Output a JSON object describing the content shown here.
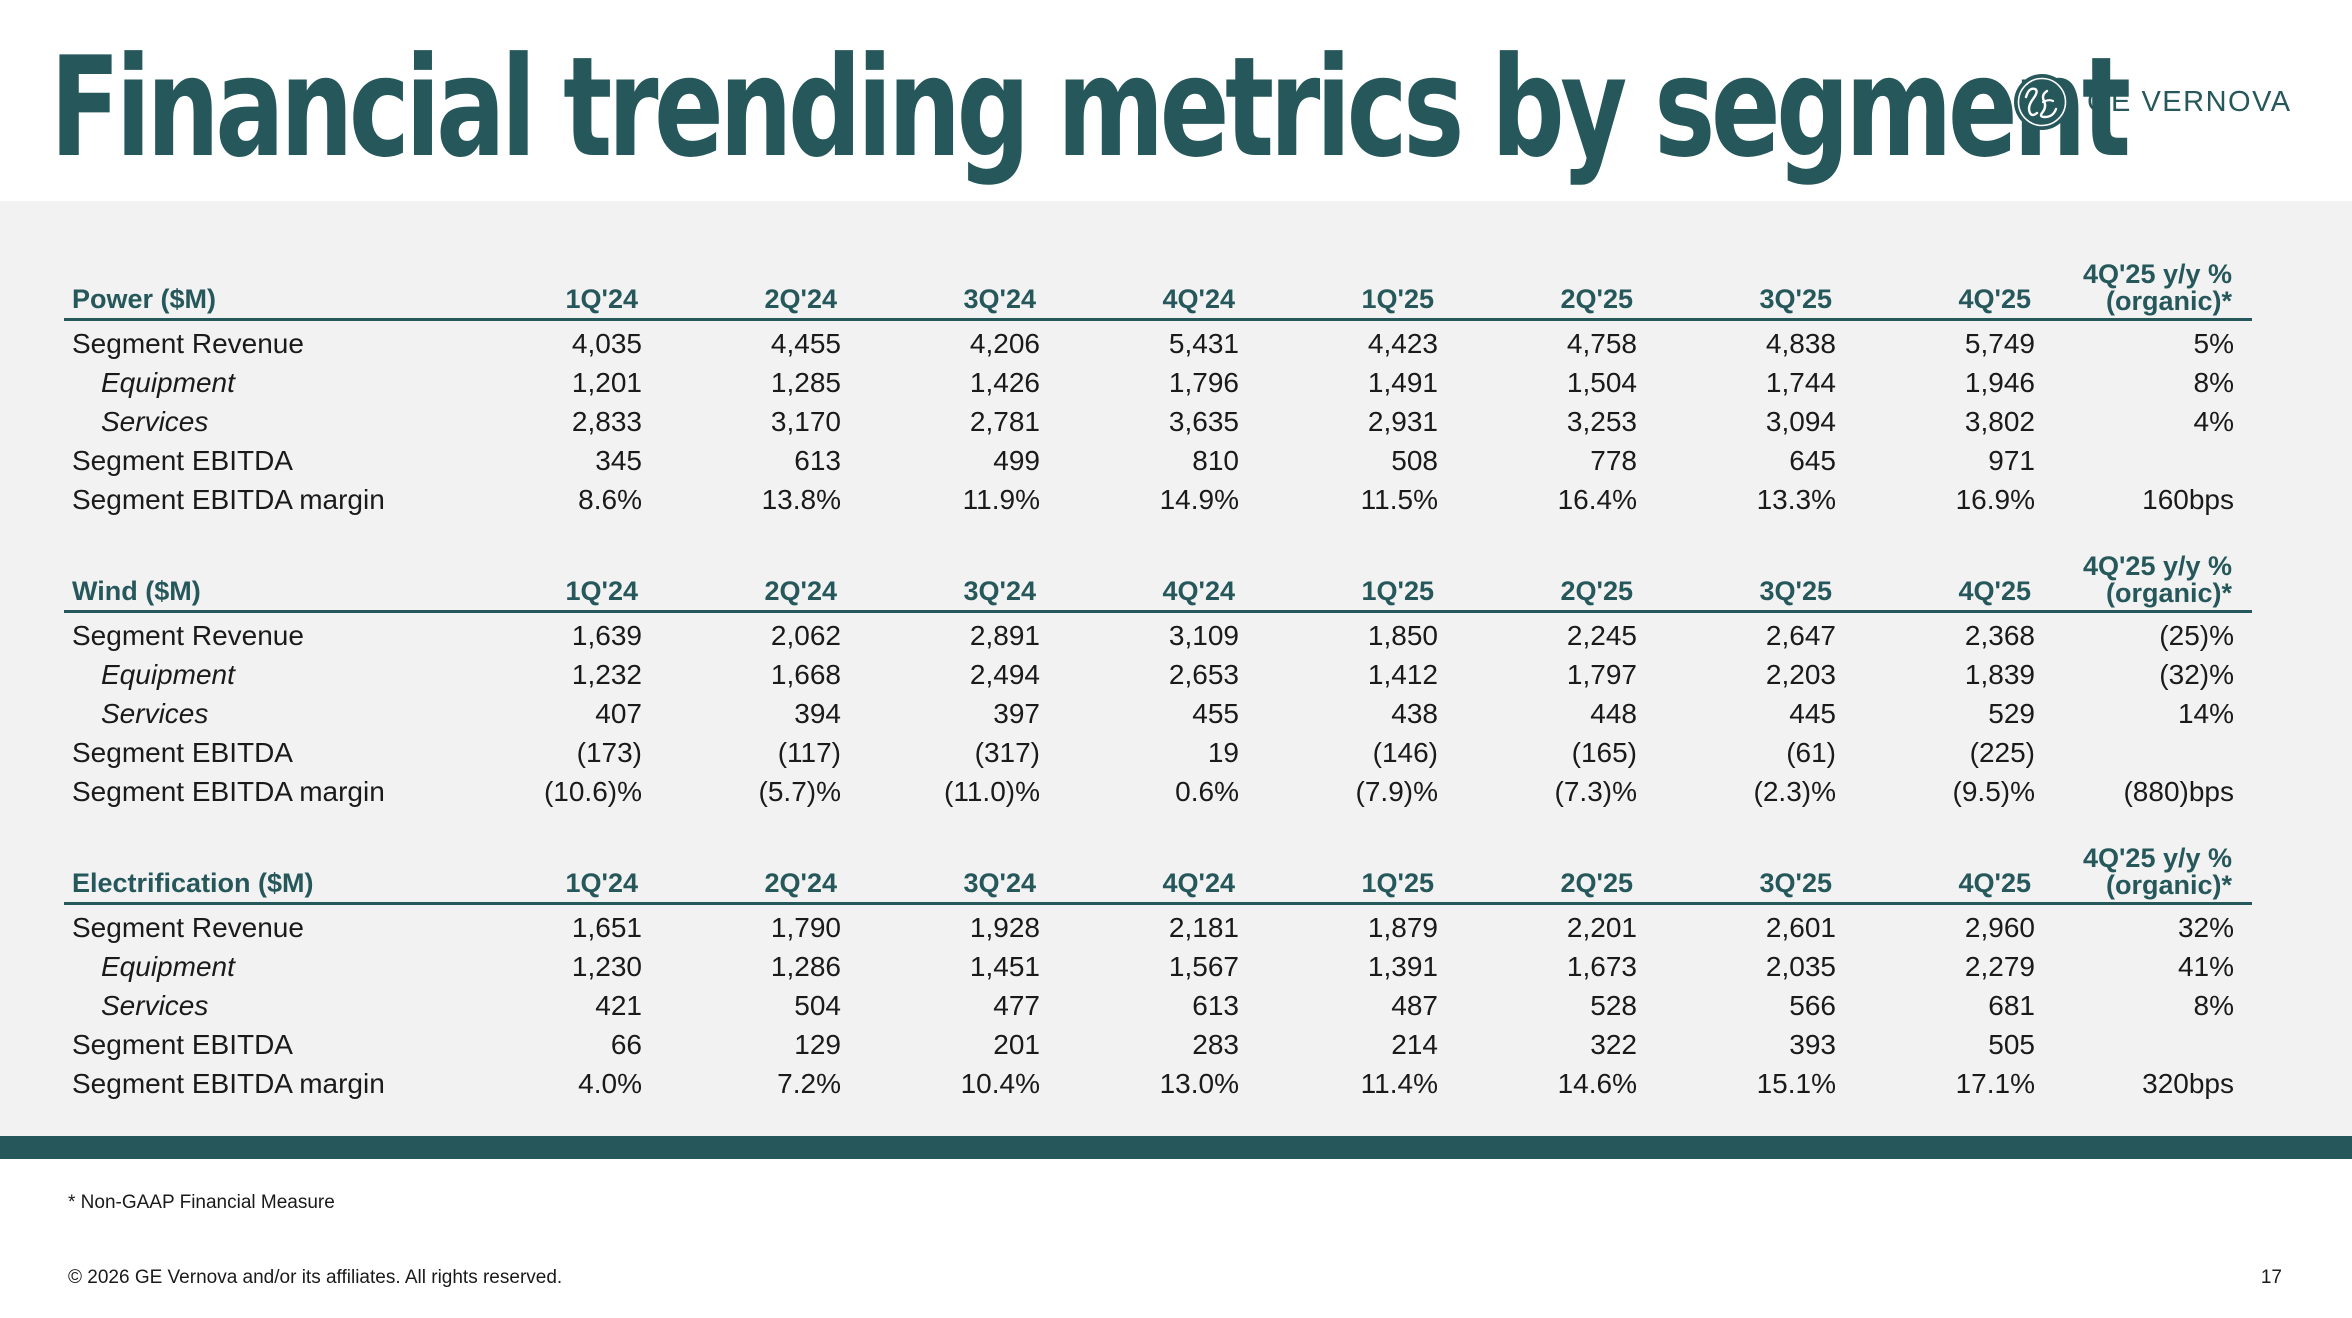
{
  "title": "Financial trending metrics by segment",
  "brand": {
    "name": "GE VERNOVA",
    "color": "#26585b",
    "icon": "ge-monogram-icon"
  },
  "quarters": [
    "1Q'24",
    "2Q'24",
    "3Q'24",
    "4Q'24",
    "1Q'25",
    "2Q'25",
    "3Q'25",
    "4Q'25"
  ],
  "yoy_header": [
    "4Q'25 y/y %",
    "(organic)*"
  ],
  "sections": [
    {
      "title": "Power ($M)",
      "rows": [
        {
          "label": "Segment Revenue",
          "sub": false,
          "values": [
            "4,035",
            "4,455",
            "4,206",
            "5,431",
            "4,423",
            "4,758",
            "4,838",
            "5,749"
          ],
          "yoy": "5%"
        },
        {
          "label": "Equipment",
          "sub": true,
          "values": [
            "1,201",
            "1,285",
            "1,426",
            "1,796",
            "1,491",
            "1,504",
            "1,744",
            "1,946"
          ],
          "yoy": "8%"
        },
        {
          "label": "Services",
          "sub": true,
          "values": [
            "2,833",
            "3,170",
            "2,781",
            "3,635",
            "2,931",
            "3,253",
            "3,094",
            "3,802"
          ],
          "yoy": "4%"
        },
        {
          "label": "Segment EBITDA",
          "sub": false,
          "values": [
            "345",
            "613",
            "499",
            "810",
            "508",
            "778",
            "645",
            "971"
          ],
          "yoy": ""
        },
        {
          "label": "Segment EBITDA margin",
          "sub": false,
          "values": [
            "8.6%",
            "13.8%",
            "11.9%",
            "14.9%",
            "11.5%",
            "16.4%",
            "13.3%",
            "16.9%"
          ],
          "yoy": "160bps"
        }
      ]
    },
    {
      "title": "Wind ($M)",
      "rows": [
        {
          "label": "Segment Revenue",
          "sub": false,
          "values": [
            "1,639",
            "2,062",
            "2,891",
            "3,109",
            "1,850",
            "2,245",
            "2,647",
            "2,368"
          ],
          "yoy": "(25)%"
        },
        {
          "label": "Equipment",
          "sub": true,
          "values": [
            "1,232",
            "1,668",
            "2,494",
            "2,653",
            "1,412",
            "1,797",
            "2,203",
            "1,839"
          ],
          "yoy": "(32)%"
        },
        {
          "label": "Services",
          "sub": true,
          "values": [
            "407",
            "394",
            "397",
            "455",
            "438",
            "448",
            "445",
            "529"
          ],
          "yoy": "14%"
        },
        {
          "label": "Segment EBITDA",
          "sub": false,
          "values": [
            "(173)",
            "(117)",
            "(317)",
            "19",
            "(146)",
            "(165)",
            "(61)",
            "(225)"
          ],
          "yoy": ""
        },
        {
          "label": "Segment EBITDA margin",
          "sub": false,
          "values": [
            "(10.6)%",
            "(5.7)%",
            "(11.0)%",
            "0.6%",
            "(7.9)%",
            "(7.3)%",
            "(2.3)%",
            "(9.5)%"
          ],
          "yoy": "(880)bps"
        }
      ]
    },
    {
      "title": "Electrification ($M)",
      "rows": [
        {
          "label": "Segment Revenue",
          "sub": false,
          "values": [
            "1,651",
            "1,790",
            "1,928",
            "2,181",
            "1,879",
            "2,201",
            "2,601",
            "2,960"
          ],
          "yoy": "32%"
        },
        {
          "label": "Equipment",
          "sub": true,
          "values": [
            "1,230",
            "1,286",
            "1,451",
            "1,567",
            "1,391",
            "1,673",
            "2,035",
            "2,279"
          ],
          "yoy": "41%"
        },
        {
          "label": "Services",
          "sub": true,
          "values": [
            "421",
            "504",
            "477",
            "613",
            "487",
            "528",
            "566",
            "681"
          ],
          "yoy": "8%"
        },
        {
          "label": "Segment EBITDA",
          "sub": false,
          "values": [
            "66",
            "129",
            "201",
            "283",
            "214",
            "322",
            "393",
            "505"
          ],
          "yoy": ""
        },
        {
          "label": "Segment EBITDA margin",
          "sub": false,
          "values": [
            "4.0%",
            "7.2%",
            "10.4%",
            "13.0%",
            "11.4%",
            "14.6%",
            "15.1%",
            "17.1%"
          ],
          "yoy": "320bps"
        }
      ]
    }
  ],
  "footnote": "* Non-GAAP Financial Measure",
  "copyright": "© 2026 GE Vernova and/or its affiliates. All rights reserved.",
  "page_number": "17"
}
